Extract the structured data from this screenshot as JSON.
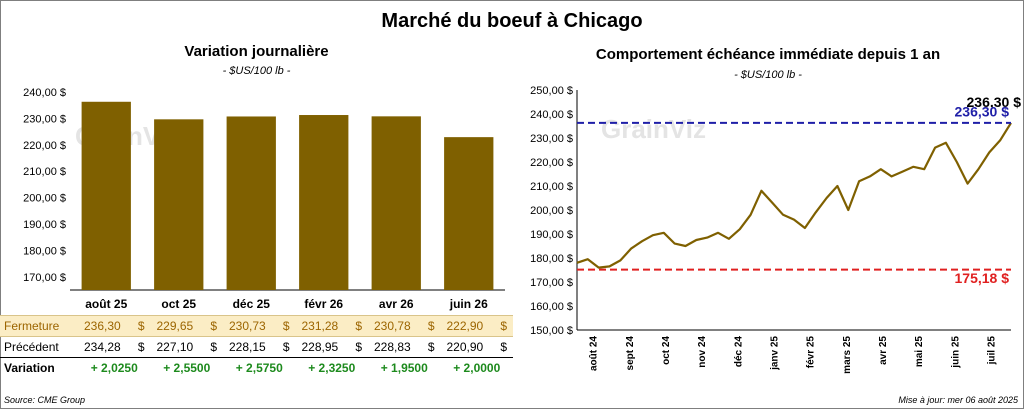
{
  "title": "Marché du boeuf à Chicago",
  "left_panel": {
    "title": "Variation journalière",
    "unit": "- $US/100 lb -"
  },
  "right_panel": {
    "title": "Comportement échéance immédiate depuis 1 an",
    "unit": "- $US/100 lb -",
    "label_current_black": "236,30 $",
    "label_current_blue": "236,30 $",
    "label_min": "175,18 $"
  },
  "watermark": "GrainViz",
  "table": {
    "rows": [
      {
        "label": "Fermeture",
        "values": [
          "236,30",
          "229,65",
          "230,73",
          "231,28",
          "230,78",
          "222,90"
        ],
        "suffix": "$"
      },
      {
        "label": "Précédent",
        "values": [
          "234,28",
          "227,10",
          "228,15",
          "228,95",
          "228,83",
          "220,90"
        ],
        "suffix": "$"
      },
      {
        "label": "Variation",
        "values": [
          "+ 2,0250",
          "+ 2,5500",
          "+ 2,5750",
          "+ 2,3250",
          "+ 1,9500",
          "+ 2,0000"
        ],
        "suffix": ""
      }
    ]
  },
  "source": "Source: CME Group",
  "update": "Mise à jour: mer 06 août 2025",
  "colors": {
    "bar": "#7f6000",
    "line": "#7f6000",
    "max_line": "#1f1fa8",
    "min_line": "#e02020",
    "close_row_bg": "#fbedc5"
  },
  "chart_data": [
    {
      "type": "bar",
      "categories": [
        "août 25",
        "oct 25",
        "déc 25",
        "févr 26",
        "avr 26",
        "juin 26"
      ],
      "values": [
        236.3,
        229.65,
        230.73,
        231.28,
        230.78,
        222.9
      ],
      "ylim": [
        165,
        240
      ],
      "yticks": [
        "170,00 $",
        "180,00 $",
        "190,00 $",
        "200,00 $",
        "210,00 $",
        "220,00 $",
        "230,00 $",
        "240,00 $"
      ],
      "title": "Variation journalière",
      "grid": false
    },
    {
      "type": "line",
      "ylim": [
        150,
        250
      ],
      "yticks": [
        "150,00 $",
        "160,00 $",
        "170,00 $",
        "180,00 $",
        "190,00 $",
        "200,00 $",
        "210,00 $",
        "220,00 $",
        "230,00 $",
        "240,00 $",
        "250,00 $"
      ],
      "xticks": [
        "août 24",
        "sept 24",
        "oct 24",
        "nov 24",
        "déc 24",
        "janv 25",
        "févr 25",
        "mars 25",
        "avr 25",
        "mai 25",
        "juin 25",
        "juil 25"
      ],
      "x": [
        0,
        0.3,
        0.6,
        0.9,
        1.2,
        1.5,
        1.8,
        2.1,
        2.4,
        2.7,
        3.0,
        3.3,
        3.6,
        3.9,
        4.2,
        4.5,
        4.8,
        5.1,
        5.4,
        5.7,
        6.0,
        6.3,
        6.6,
        6.9,
        7.2,
        7.5,
        7.8,
        8.1,
        8.4,
        8.7,
        9.0,
        9.3,
        9.6,
        9.9,
        10.2,
        10.5,
        10.8,
        11.1,
        11.4,
        11.7,
        12.0
      ],
      "series": [
        {
          "values": [
            178.0,
            179.5,
            176.0,
            176.5,
            179.0,
            184.0,
            187.0,
            189.5,
            190.5,
            186.0,
            185.0,
            187.5,
            188.5,
            190.5,
            188.0,
            192.0,
            198.0,
            208.0,
            203.0,
            198.0,
            196.0,
            192.5,
            199.0,
            205.0,
            210.0,
            200.0,
            212.0,
            214.0,
            217.0,
            214.0,
            216.0,
            218.0,
            217.0,
            226.0,
            228.0,
            220.0,
            211.0,
            217.0,
            224.0,
            229.0,
            236.3
          ]
        }
      ],
      "max_value": 236.3,
      "min_value": 175.18,
      "title": "Comportement échéance immédiate depuis 1 an",
      "grid": false
    }
  ]
}
